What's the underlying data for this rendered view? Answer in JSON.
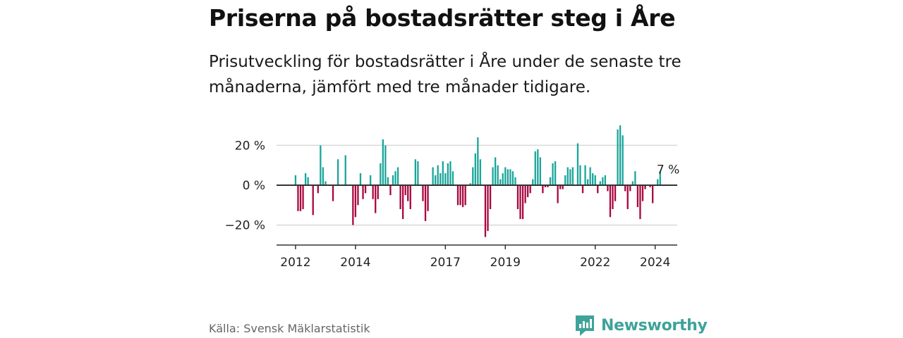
{
  "header": {
    "title": "Priserna på bostadsrätter steg i Åre",
    "subtitle": "Prisutveckling för bostadsrätter i Åre under de senaste tre månaderna, jämfört med tre månader tidigare."
  },
  "footer": {
    "source": "Källa: Svensk Mäklarstatistik",
    "brand": "Newsworthy"
  },
  "colors": {
    "positive": "#1aa59a",
    "negative": "#a8073f",
    "grid": "#d9d9d9",
    "axis": "#333333",
    "brand": "#3ea39a"
  },
  "chart_data": {
    "type": "bar",
    "title": "Priserna på bostadsrätter steg i Åre",
    "xlabel": "",
    "ylabel": "",
    "ylim": [
      -30,
      30
    ],
    "y_ticks": [
      {
        "value": 20,
        "label": "20 %"
      },
      {
        "value": 0,
        "label": "0 %"
      },
      {
        "value": -20,
        "label": "−20 %"
      }
    ],
    "x_ticks": [
      {
        "label": "2012",
        "index": 7
      },
      {
        "label": "2014",
        "index": 31
      },
      {
        "label": "2017",
        "index": 67
      },
      {
        "label": "2019",
        "index": 91
      },
      {
        "label": "2022",
        "index": 127
      },
      {
        "label": "2024",
        "index": 151
      }
    ],
    "start": "2011-01",
    "annotation": {
      "label": "7 %",
      "index": 152
    },
    "values": [
      0,
      0,
      0,
      0,
      0,
      0,
      0,
      5,
      -13,
      -13,
      -12,
      6,
      4,
      0,
      -15,
      0,
      -4,
      20,
      9,
      2,
      0,
      0,
      -8,
      0,
      13,
      0,
      0,
      15,
      0,
      0,
      -20,
      -16,
      -10,
      6,
      -7,
      -4,
      0,
      5,
      -7,
      -14,
      -7,
      11,
      23,
      20,
      4,
      -5,
      5,
      7,
      9,
      -12,
      -17,
      -5,
      -8,
      -12,
      0,
      13,
      12,
      0,
      -8,
      -18,
      -13,
      0,
      9,
      5,
      10,
      6,
      12,
      6,
      11,
      12,
      7,
      0,
      -10,
      -10,
      -11,
      -10,
      0,
      1,
      9,
      16,
      24,
      13,
      0,
      -26,
      -23,
      -12,
      9,
      14,
      10,
      3,
      6,
      9,
      8,
      8,
      7,
      4,
      -12,
      -17,
      -17,
      -9,
      -6,
      -4,
      3,
      17,
      18,
      14,
      -4,
      -1,
      -1,
      4,
      11,
      12,
      -9,
      -2,
      -2,
      5,
      9,
      8,
      9,
      0,
      21,
      10,
      -4,
      10,
      3,
      9,
      6,
      5,
      -4,
      2,
      4,
      5,
      -3,
      -16,
      -12,
      -8,
      28,
      30,
      25,
      -3,
      -12,
      -3,
      2,
      7,
      -11,
      -17,
      -8,
      -2,
      0,
      -1,
      -9,
      0,
      3,
      7
    ]
  }
}
